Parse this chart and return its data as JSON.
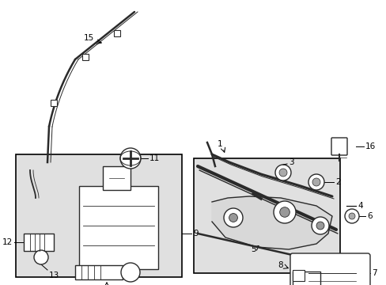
{
  "bg_color": "#ffffff",
  "lc": "#2a2a2a",
  "gray_bg": "#e0e0e0",
  "figsize": [
    4.89,
    3.6
  ],
  "dpi": 100,
  "xlim": [
    0,
    489
  ],
  "ylim": [
    0,
    360
  ]
}
